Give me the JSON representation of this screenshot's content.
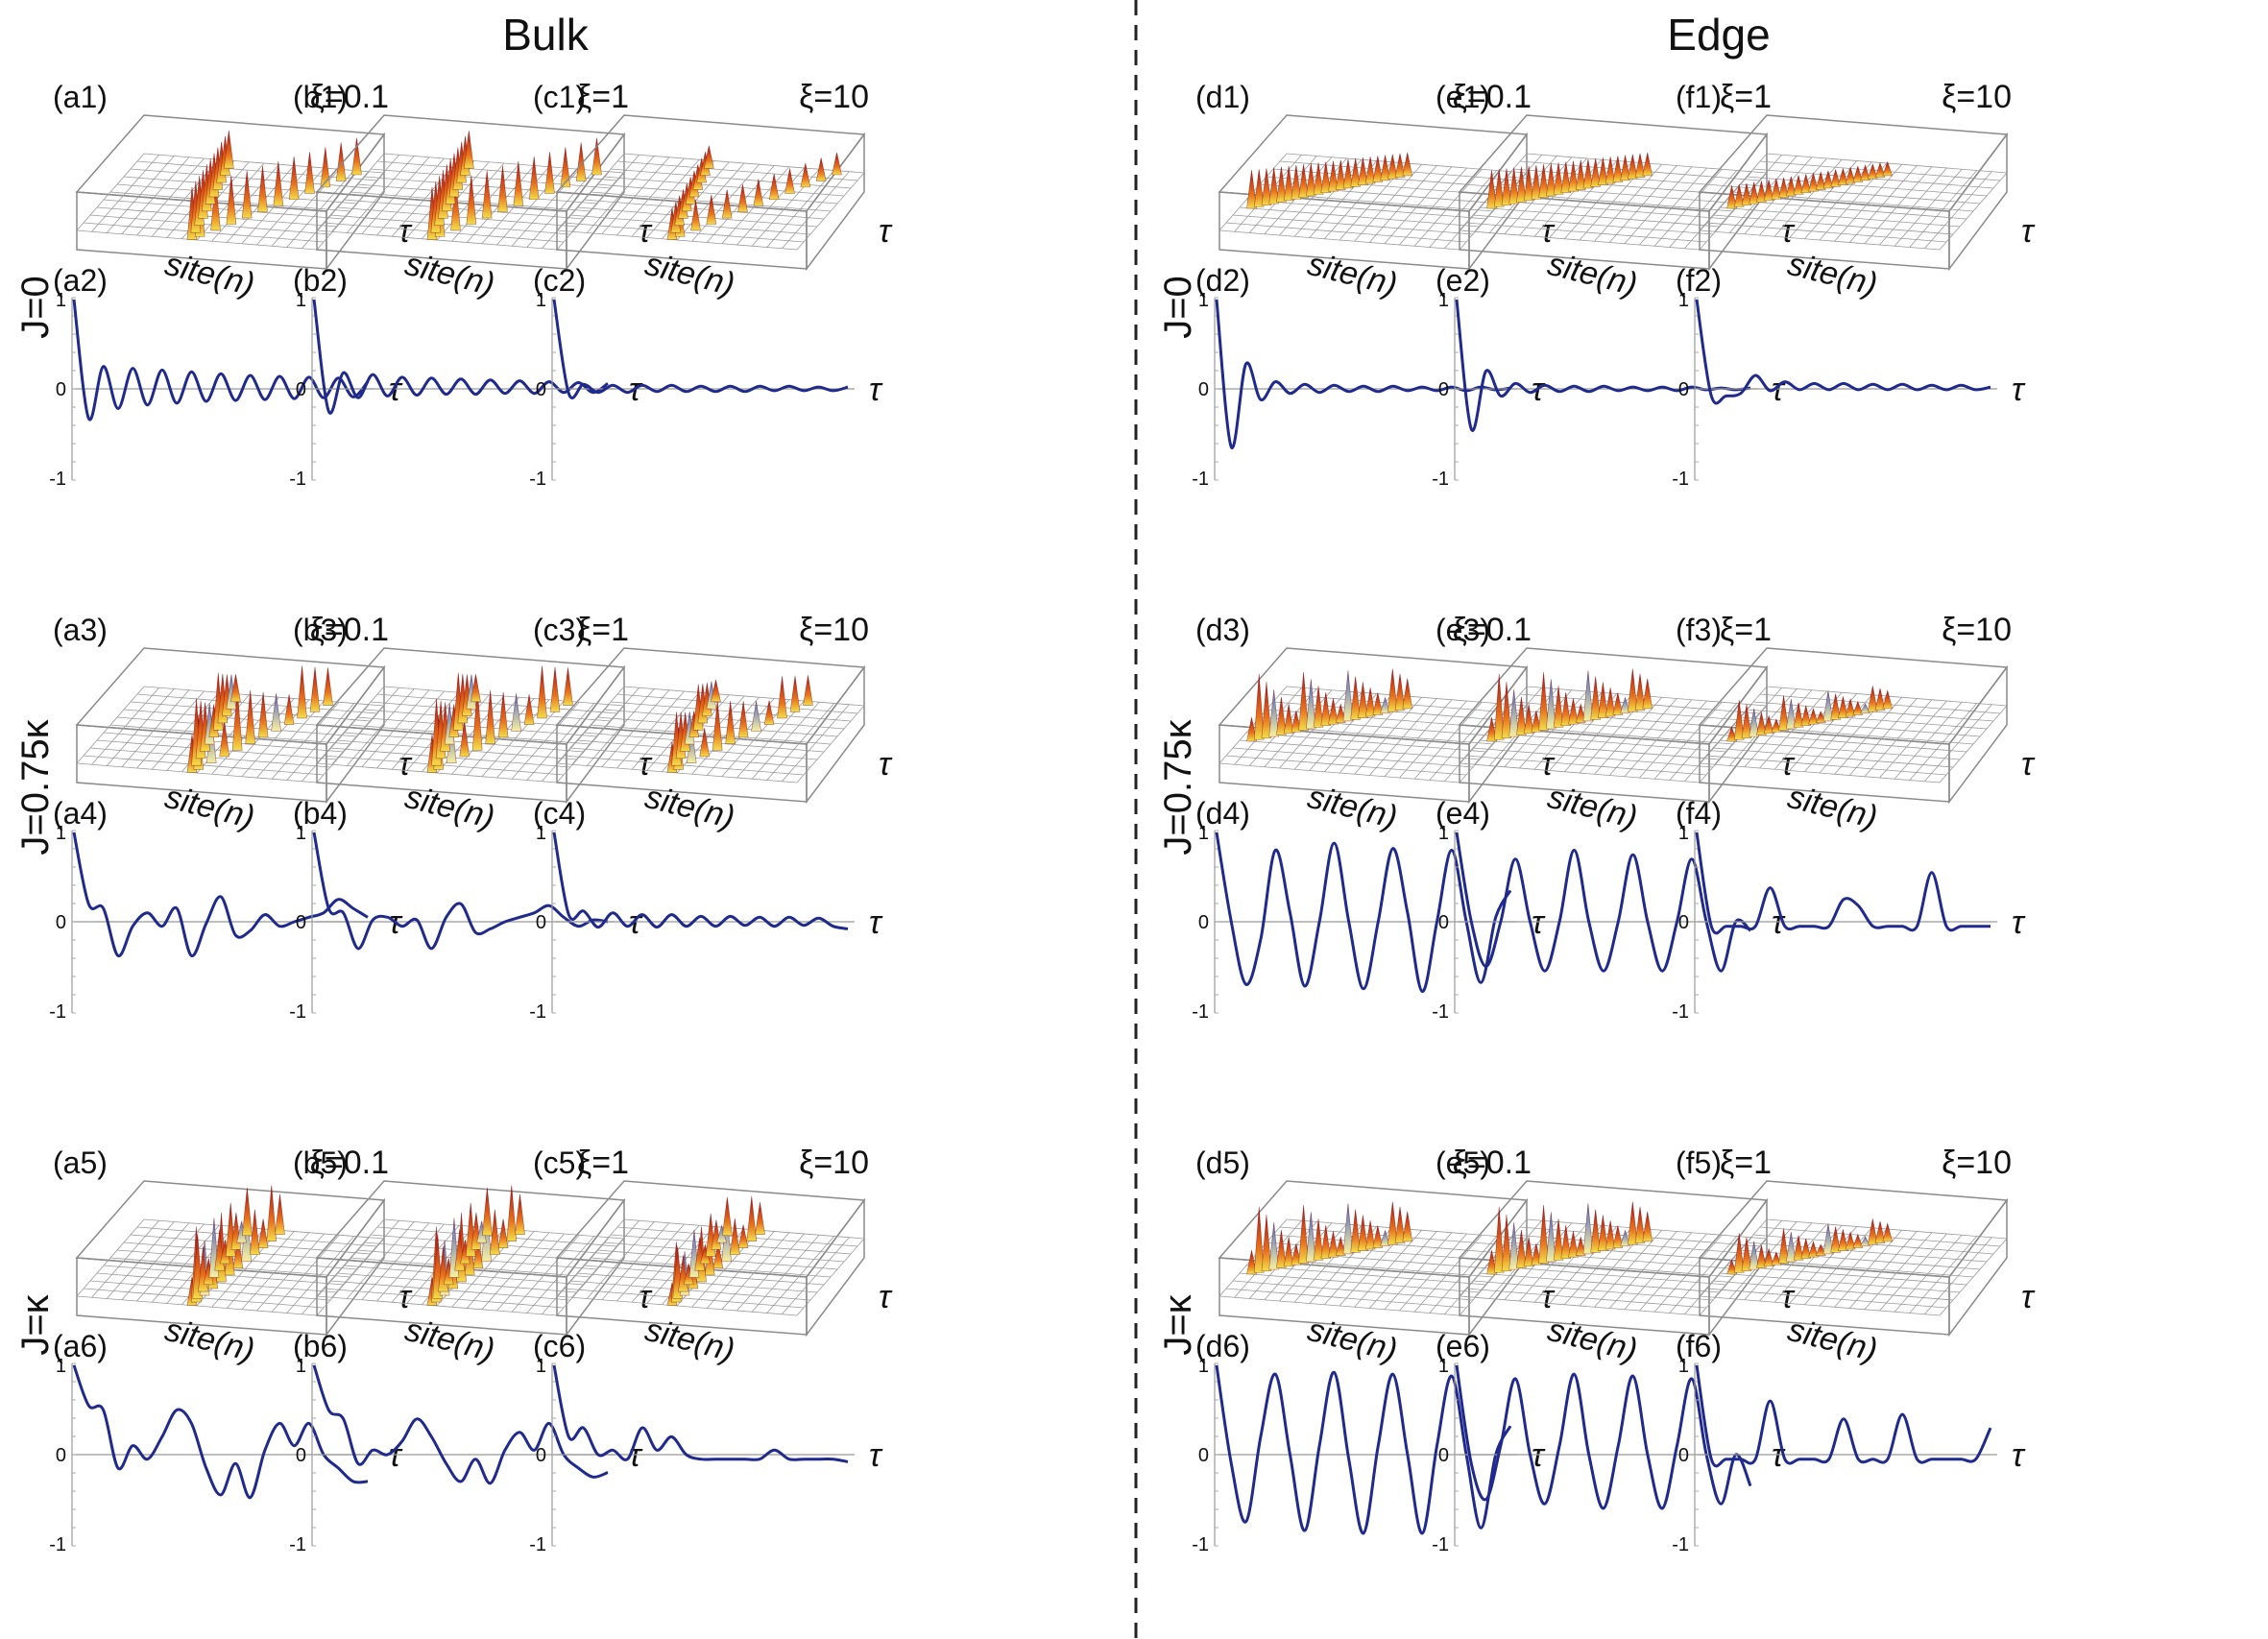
{
  "figure": {
    "section_titles": [
      "Bulk",
      "Edge"
    ],
    "row_labels": [
      "J=0",
      "J=0.75κ",
      "J=κ"
    ],
    "axis_symbol": "τ",
    "site_axis_label": "site(n)",
    "y_ticks": [
      "1",
      "0",
      "-1"
    ],
    "column_letters": [
      "a",
      "b",
      "c",
      "d",
      "e",
      "f"
    ],
    "xi_labels": [
      "ξ=0.1",
      "ξ=1",
      "ξ=10",
      "ξ=0.1",
      "ξ=1",
      "ξ=10"
    ]
  },
  "colors": {
    "line": "#1f2a8c",
    "surface_red": "#c01818",
    "surface_orange": "#e8741c",
    "surface_yellow": "#f2df4a",
    "surface_blue": "#4a68c8",
    "grid": "#9a9a9a",
    "box": "#8a8a8a",
    "divider": "#222222"
  },
  "chart_data": {
    "type": "line",
    "title": "",
    "xlabel": "τ",
    "ylabel": "",
    "ylim": [
      -1,
      1
    ],
    "x": [
      0,
      0.05,
      0.1,
      0.15,
      0.2,
      0.25,
      0.3,
      0.35,
      0.4,
      0.45,
      0.5,
      0.55,
      0.6,
      0.65,
      0.7,
      0.75,
      0.8,
      0.85,
      0.9,
      0.95,
      1
    ],
    "rows": [
      {
        "row_label": "J=0",
        "panels": [
          {
            "panel": "(a2)",
            "xi": "ξ=0.1",
            "values": [
              1.0,
              -0.33,
              0.25,
              -0.22,
              0.23,
              -0.18,
              0.21,
              -0.16,
              0.19,
              -0.14,
              0.17,
              -0.13,
              0.15,
              -0.12,
              0.14,
              -0.11,
              0.13,
              -0.1,
              0.12,
              -0.09,
              0.08
            ]
          },
          {
            "panel": "(b2)",
            "xi": "ξ=1",
            "values": [
              1.0,
              -0.25,
              0.18,
              -0.1,
              0.16,
              -0.08,
              0.13,
              -0.07,
              0.12,
              -0.06,
              0.11,
              -0.06,
              0.1,
              -0.05,
              0.09,
              -0.05,
              0.08,
              -0.04,
              0.07,
              -0.04,
              0.06
            ]
          },
          {
            "panel": "(c2)",
            "xi": "ξ=10",
            "values": [
              1.0,
              -0.05,
              0.05,
              -0.04,
              0.04,
              -0.04,
              0.04,
              -0.03,
              0.04,
              -0.03,
              0.03,
              -0.03,
              0.03,
              -0.03,
              0.03,
              -0.02,
              0.03,
              -0.02,
              0.02,
              -0.02,
              0.02
            ]
          },
          {
            "panel": "(d2)",
            "xi": "ξ=0.1",
            "values": [
              1.0,
              -0.65,
              0.28,
              -0.12,
              0.08,
              -0.05,
              0.05,
              -0.04,
              0.04,
              -0.03,
              0.03,
              -0.03,
              0.03,
              -0.02,
              0.02,
              -0.02,
              0.02,
              -0.02,
              0.02,
              -0.01,
              0.01
            ]
          },
          {
            "panel": "(e2)",
            "xi": "ξ=1",
            "values": [
              1.0,
              -0.45,
              0.2,
              -0.08,
              0.06,
              -0.04,
              0.04,
              -0.03,
              0.03,
              -0.03,
              0.03,
              -0.02,
              0.02,
              -0.02,
              0.02,
              -0.02,
              0.02,
              -0.01,
              0.01,
              -0.01,
              0.01
            ]
          },
          {
            "panel": "(f2)",
            "xi": "ξ=10",
            "values": [
              1.0,
              -0.08,
              -0.08,
              -0.05,
              0.15,
              -0.02,
              0.08,
              -0.01,
              0.06,
              -0.01,
              0.06,
              -0.01,
              0.05,
              -0.01,
              0.05,
              -0.01,
              0.04,
              -0.01,
              0.04,
              -0.01,
              0.02
            ]
          }
        ]
      },
      {
        "row_label": "J=0.75κ",
        "panels": [
          {
            "panel": "(a4)",
            "xi": "ξ=0.1",
            "values": [
              1.0,
              0.2,
              0.15,
              -0.38,
              -0.05,
              0.1,
              -0.05,
              0.15,
              -0.38,
              -0.02,
              0.28,
              -0.15,
              -0.1,
              0.08,
              -0.05,
              0.0,
              0.05,
              0.1,
              0.25,
              0.15,
              0.05
            ]
          },
          {
            "panel": "(b4)",
            "xi": "ξ=1",
            "values": [
              1.0,
              0.15,
              0.1,
              -0.3,
              0.02,
              0.05,
              -0.05,
              0.02,
              -0.3,
              0.05,
              0.2,
              -0.12,
              -0.08,
              0.0,
              0.05,
              0.1,
              0.18,
              0.05,
              -0.05,
              0.02,
              0.0
            ]
          },
          {
            "panel": "(c4)",
            "xi": "ξ=10",
            "values": [
              1.0,
              0.08,
              0.12,
              -0.06,
              0.1,
              -0.05,
              0.08,
              -0.06,
              0.08,
              -0.05,
              0.06,
              -0.05,
              0.06,
              -0.04,
              0.05,
              -0.05,
              0.05,
              -0.04,
              0.04,
              -0.05,
              -0.08
            ]
          },
          {
            "panel": "(d4)",
            "xi": "ξ=0.1",
            "values": [
              1.0,
              0.0,
              -0.7,
              -0.2,
              0.8,
              0.1,
              -0.72,
              0.0,
              0.88,
              0.0,
              -0.75,
              0.0,
              0.82,
              0.1,
              -0.78,
              0.0,
              0.8,
              0.0,
              -0.68,
              0.05,
              0.35
            ]
          },
          {
            "panel": "(e4)",
            "xi": "ξ=1",
            "values": [
              1.0,
              0.0,
              -0.5,
              0.0,
              0.7,
              0.0,
              -0.55,
              0.0,
              0.8,
              0.0,
              -0.55,
              0.0,
              0.75,
              0.0,
              -0.55,
              0.0,
              0.7,
              0.0,
              -0.55,
              0.0,
              -0.1
            ]
          },
          {
            "panel": "(f4)",
            "xi": "ξ=10",
            "values": [
              1.0,
              -0.05,
              -0.05,
              -0.05,
              -0.05,
              0.38,
              -0.05,
              -0.05,
              -0.05,
              -0.05,
              0.25,
              0.18,
              -0.05,
              -0.05,
              -0.05,
              -0.05,
              0.55,
              -0.05,
              -0.05,
              -0.05,
              -0.05
            ]
          }
        ]
      },
      {
        "row_label": "J=κ",
        "panels": [
          {
            "panel": "(a6)",
            "xi": "ξ=0.1",
            "values": [
              1.0,
              0.55,
              0.5,
              -0.15,
              0.1,
              -0.05,
              0.2,
              0.5,
              0.35,
              -0.15,
              -0.45,
              -0.1,
              -0.48,
              0.05,
              0.35,
              0.1,
              0.35,
              0.0,
              -0.15,
              -0.3,
              -0.3
            ]
          },
          {
            "panel": "(b6)",
            "xi": "ξ=1",
            "values": [
              1.0,
              0.5,
              0.4,
              -0.1,
              0.05,
              0.0,
              0.15,
              0.4,
              0.2,
              -0.1,
              -0.3,
              -0.05,
              -0.32,
              0.05,
              0.25,
              0.05,
              0.35,
              0.0,
              -0.15,
              -0.25,
              -0.2
            ]
          },
          {
            "panel": "(c6)",
            "xi": "ξ=10",
            "values": [
              1.0,
              0.2,
              0.3,
              0.0,
              0.05,
              -0.05,
              0.3,
              0.05,
              0.2,
              0.0,
              -0.05,
              -0.05,
              -0.05,
              -0.05,
              -0.05,
              0.05,
              -0.05,
              -0.05,
              -0.05,
              -0.05,
              -0.08
            ]
          },
          {
            "panel": "(d6)",
            "xi": "ξ=0.1",
            "values": [
              1.0,
              -0.1,
              -0.75,
              0.2,
              0.9,
              0.0,
              -0.85,
              0.1,
              0.92,
              -0.05,
              -0.88,
              0.1,
              0.9,
              0.0,
              -0.88,
              0.1,
              0.88,
              0.0,
              -0.82,
              0.0,
              0.32
            ]
          },
          {
            "panel": "(e6)",
            "xi": "ξ=1",
            "values": [
              1.0,
              -0.1,
              -0.5,
              0.1,
              0.85,
              0.0,
              -0.55,
              0.1,
              0.9,
              0.0,
              -0.6,
              0.1,
              0.88,
              0.0,
              -0.6,
              0.1,
              0.85,
              0.0,
              -0.55,
              0.0,
              -0.35
            ]
          },
          {
            "panel": "(f6)",
            "xi": "ξ=10",
            "values": [
              1.0,
              -0.05,
              -0.05,
              -0.05,
              -0.05,
              0.6,
              -0.05,
              -0.05,
              -0.05,
              -0.05,
              0.4,
              -0.05,
              -0.05,
              -0.05,
              0.45,
              -0.05,
              -0.05,
              -0.05,
              -0.05,
              -0.05,
              0.3
            ]
          }
        ]
      }
    ]
  }
}
